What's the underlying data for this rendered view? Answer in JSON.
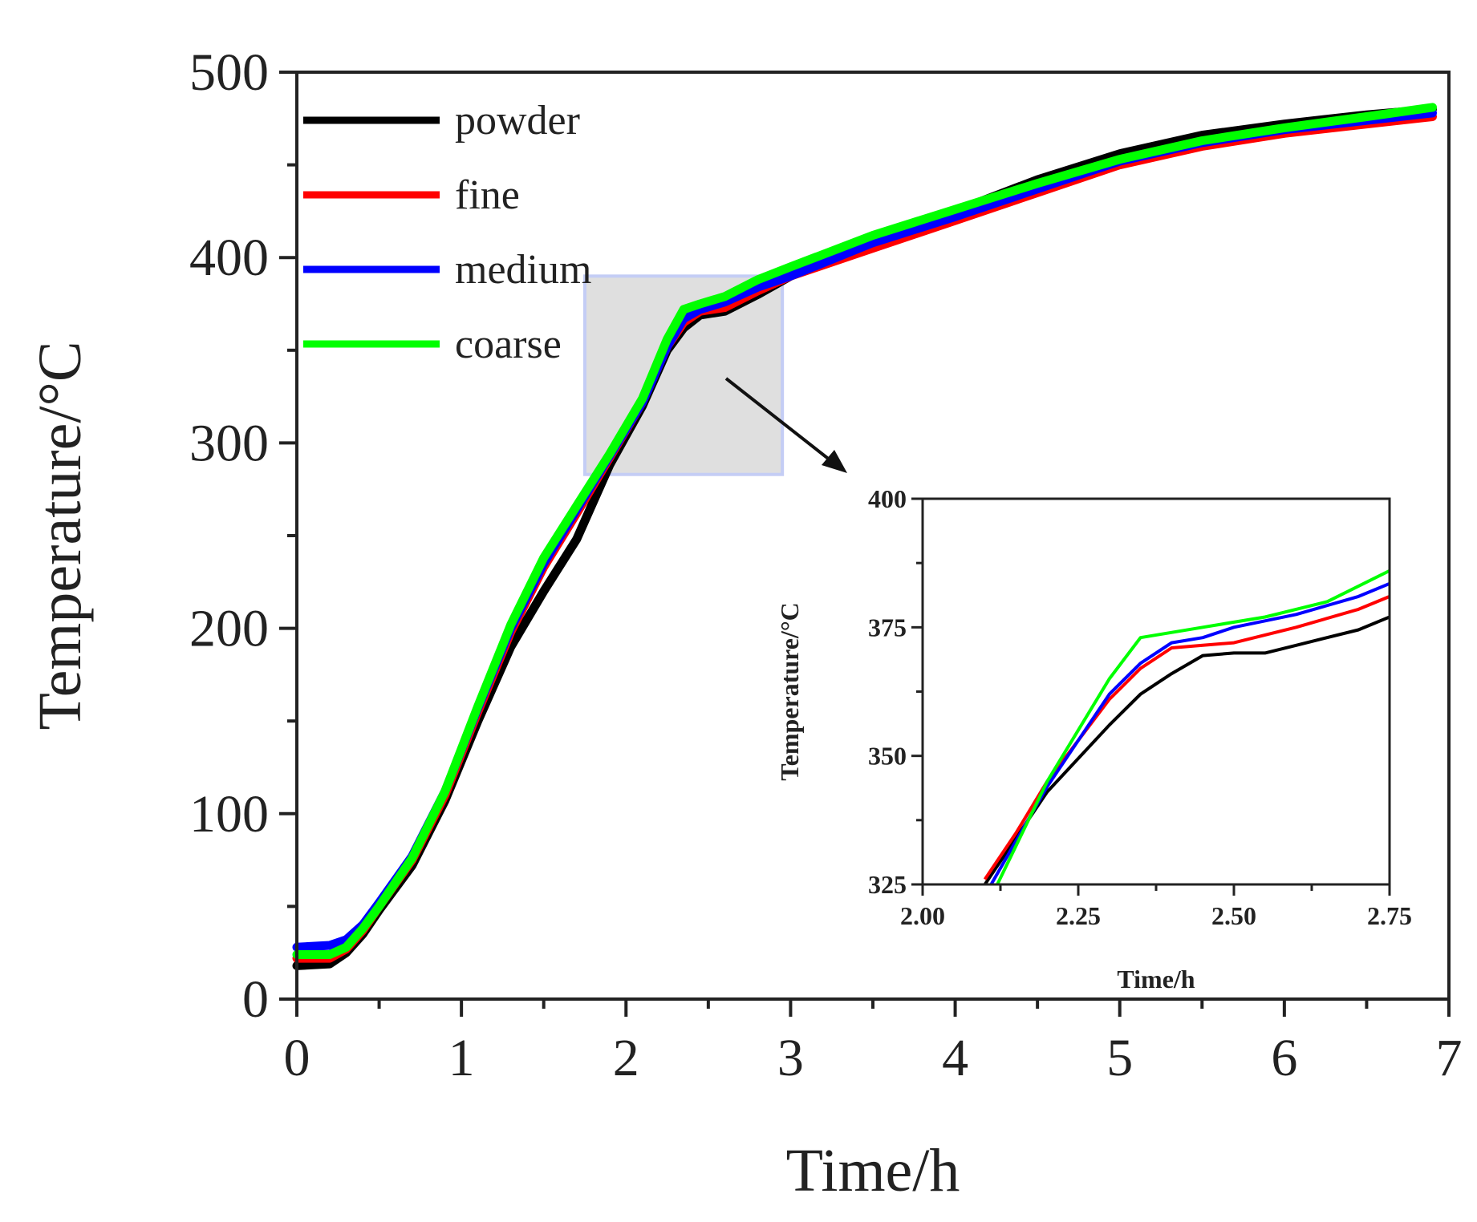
{
  "chart_data": [
    {
      "id": "main",
      "type": "line",
      "xlabel": "Time/h",
      "ylabel": "Temperature/°C",
      "xlim": [
        0,
        7
      ],
      "ylim": [
        0,
        500
      ],
      "xticks": [
        "0",
        "1",
        "2",
        "3",
        "4",
        "5",
        "6",
        "7"
      ],
      "yticks": [
        "0",
        "100",
        "200",
        "300",
        "400",
        "500"
      ],
      "legend_position": "top-left",
      "highlight_region": {
        "x": [
          1.75,
          2.95
        ],
        "y": [
          283,
          390
        ]
      },
      "series": [
        {
          "name": "powder",
          "color": "#000000",
          "points": [
            [
              0,
              18
            ],
            [
              0.2,
              19
            ],
            [
              0.3,
              25
            ],
            [
              0.4,
              35
            ],
            [
              0.5,
              48
            ],
            [
              0.7,
              72
            ],
            [
              0.9,
              107
            ],
            [
              1.1,
              150
            ],
            [
              1.3,
              190
            ],
            [
              1.5,
              220
            ],
            [
              1.7,
              248
            ],
            [
              1.9,
              288
            ],
            [
              2.1,
              320
            ],
            [
              2.25,
              350
            ],
            [
              2.35,
              362
            ],
            [
              2.45,
              369
            ],
            [
              2.6,
              371
            ],
            [
              2.8,
              380
            ],
            [
              3,
              390
            ],
            [
              3.5,
              410
            ],
            [
              4,
              425
            ],
            [
              4.5,
              442
            ],
            [
              5,
              456
            ],
            [
              5.5,
              466
            ],
            [
              6,
              472
            ],
            [
              6.5,
              477
            ],
            [
              6.9,
              480
            ]
          ]
        },
        {
          "name": "fine",
          "color": "#ff0000",
          "points": [
            [
              0,
              22
            ],
            [
              0.2,
              22
            ],
            [
              0.3,
              27
            ],
            [
              0.4,
              37
            ],
            [
              0.5,
              50
            ],
            [
              0.7,
              75
            ],
            [
              0.9,
              110
            ],
            [
              1.1,
              155
            ],
            [
              1.3,
              198
            ],
            [
              1.5,
              233
            ],
            [
              1.7,
              262
            ],
            [
              1.9,
              292
            ],
            [
              2.1,
              322
            ],
            [
              2.25,
              352
            ],
            [
              2.35,
              365
            ],
            [
              2.45,
              371
            ],
            [
              2.6,
              373
            ],
            [
              2.8,
              382
            ],
            [
              3,
              390
            ],
            [
              3.5,
              405
            ],
            [
              4,
              420
            ],
            [
              4.5,
              435
            ],
            [
              5,
              450
            ],
            [
              5.5,
              460
            ],
            [
              6,
              467
            ],
            [
              6.5,
              472
            ],
            [
              6.9,
              476
            ]
          ]
        },
        {
          "name": "medium",
          "color": "#0000ff",
          "points": [
            [
              0,
              28
            ],
            [
              0.2,
              29
            ],
            [
              0.3,
              32
            ],
            [
              0.4,
              40
            ],
            [
              0.5,
              52
            ],
            [
              0.7,
              77
            ],
            [
              0.9,
              112
            ],
            [
              1.1,
              157
            ],
            [
              1.3,
              200
            ],
            [
              1.5,
              235
            ],
            [
              1.7,
              264
            ],
            [
              1.9,
              293
            ],
            [
              2.1,
              322
            ],
            [
              2.25,
              352
            ],
            [
              2.35,
              367
            ],
            [
              2.45,
              372
            ],
            [
              2.6,
              376
            ],
            [
              2.8,
              384
            ],
            [
              3,
              390
            ],
            [
              3.5,
              408
            ],
            [
              4,
              422
            ],
            [
              4.5,
              437
            ],
            [
              5,
              452
            ],
            [
              5.5,
              462
            ],
            [
              6,
              469
            ],
            [
              6.5,
              474
            ],
            [
              6.9,
              478
            ]
          ]
        },
        {
          "name": "coarse",
          "color": "#00ff00",
          "points": [
            [
              0,
              24
            ],
            [
              0.2,
              24
            ],
            [
              0.3,
              28
            ],
            [
              0.4,
              38
            ],
            [
              0.5,
              50
            ],
            [
              0.7,
              76
            ],
            [
              0.9,
              112
            ],
            [
              1.1,
              158
            ],
            [
              1.3,
              202
            ],
            [
              1.5,
              238
            ],
            [
              1.7,
              266
            ],
            [
              1.9,
              294
            ],
            [
              2.1,
              324
            ],
            [
              2.25,
              356
            ],
            [
              2.35,
              372
            ],
            [
              2.45,
              375
            ],
            [
              2.6,
              379
            ],
            [
              2.8,
              388
            ],
            [
              3,
              395
            ],
            [
              3.5,
              412
            ],
            [
              4,
              426
            ],
            [
              4.5,
              440
            ],
            [
              5,
              453
            ],
            [
              5.5,
              463
            ],
            [
              6,
              470
            ],
            [
              6.5,
              476
            ],
            [
              6.9,
              481
            ]
          ]
        }
      ]
    },
    {
      "id": "inset",
      "type": "line",
      "xlabel": "Time/h",
      "ylabel": "Temperature/°C",
      "xlim": [
        2.0,
        2.75
      ],
      "ylim": [
        325,
        400
      ],
      "xticks": [
        "2.00",
        "2.25",
        "2.50",
        "2.75"
      ],
      "yticks": [
        "325",
        "350",
        "375",
        "400"
      ],
      "series": [
        {
          "name": "powder",
          "color": "#000000",
          "points": [
            [
              2.1,
              325
            ],
            [
              2.2,
              343
            ],
            [
              2.3,
              356
            ],
            [
              2.35,
              362
            ],
            [
              2.4,
              366
            ],
            [
              2.45,
              369.5
            ],
            [
              2.5,
              370
            ],
            [
              2.55,
              370
            ],
            [
              2.6,
              371.5
            ],
            [
              2.7,
              374.5
            ],
            [
              2.75,
              377
            ]
          ]
        },
        {
          "name": "fine",
          "color": "#ff0000",
          "points": [
            [
              2.1,
              326
            ],
            [
              2.15,
              335
            ],
            [
              2.2,
              345
            ],
            [
              2.3,
              361
            ],
            [
              2.35,
              367
            ],
            [
              2.4,
              371
            ],
            [
              2.45,
              371.5
            ],
            [
              2.5,
              372
            ],
            [
              2.6,
              375
            ],
            [
              2.7,
              378.5
            ],
            [
              2.75,
              381
            ]
          ]
        },
        {
          "name": "medium",
          "color": "#0000ff",
          "points": [
            [
              2.11,
              325
            ],
            [
              2.2,
              344
            ],
            [
              2.3,
              362
            ],
            [
              2.35,
              368
            ],
            [
              2.4,
              372
            ],
            [
              2.45,
              373
            ],
            [
              2.5,
              375
            ],
            [
              2.6,
              377.5
            ],
            [
              2.7,
              381
            ],
            [
              2.75,
              383.5
            ]
          ]
        },
        {
          "name": "coarse",
          "color": "#00ff00",
          "points": [
            [
              2.12,
              325
            ],
            [
              2.2,
              345
            ],
            [
              2.3,
              365
            ],
            [
              2.35,
              373
            ],
            [
              2.45,
              375
            ],
            [
              2.55,
              377
            ],
            [
              2.65,
              380
            ],
            [
              2.75,
              386
            ]
          ]
        }
      ]
    }
  ]
}
